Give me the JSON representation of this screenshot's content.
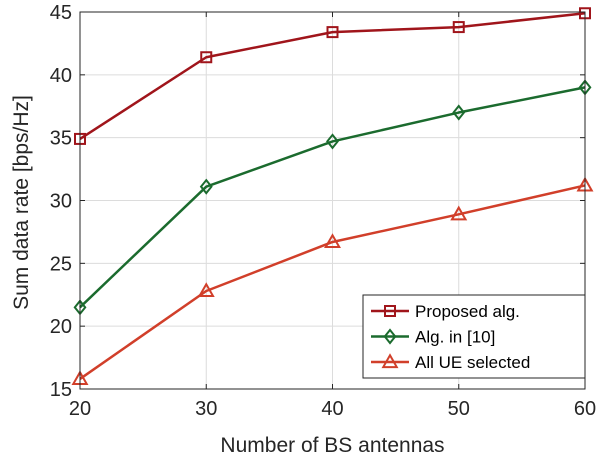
{
  "chart_data": {
    "type": "line",
    "title": "",
    "xlabel": "Number of BS antennas",
    "ylabel": "Sum data rate [bps/Hz]",
    "x": [
      20,
      30,
      40,
      50,
      60
    ],
    "xlim": [
      20,
      60
    ],
    "ylim": [
      15,
      45
    ],
    "xticks": [
      "20",
      "30",
      "40",
      "50",
      "60"
    ],
    "yticks": [
      "15",
      "20",
      "25",
      "30",
      "35",
      "40",
      "45"
    ],
    "grid": true,
    "legend_position": "bottom-right",
    "series": [
      {
        "name": "Proposed alg.",
        "marker": "square",
        "color": "#a0151b",
        "values": [
          34.9,
          41.4,
          43.4,
          43.8,
          44.9
        ]
      },
      {
        "name": "Alg. in [10]",
        "marker": "diamond",
        "color": "#1b6b2e",
        "values": [
          21.5,
          31.1,
          34.7,
          37.0,
          39.0
        ]
      },
      {
        "name": "All UE selected",
        "marker": "triangle",
        "color": "#d13f2a",
        "values": [
          15.8,
          22.8,
          26.7,
          28.9,
          31.2
        ]
      }
    ]
  }
}
